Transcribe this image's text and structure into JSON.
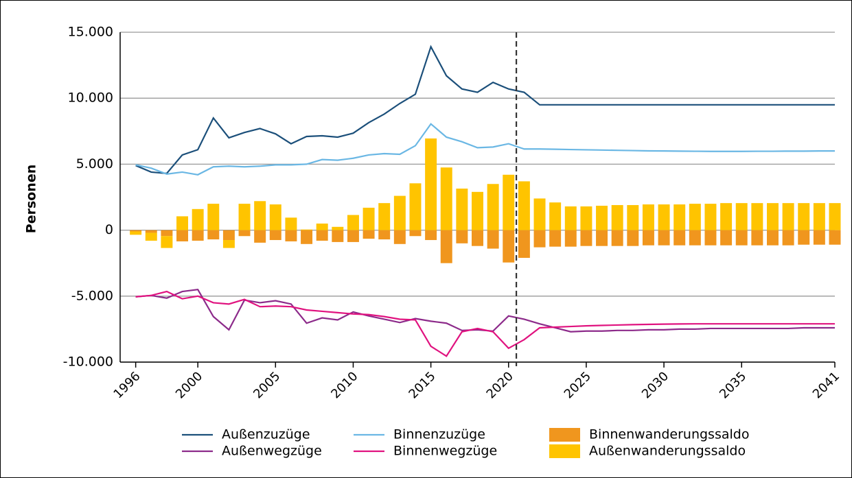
{
  "chart_data": {
    "type": "combo",
    "y_label": "Personen",
    "x": [
      1996,
      1997,
      1998,
      1999,
      2000,
      2001,
      2002,
      2003,
      2004,
      2005,
      2006,
      2007,
      2008,
      2009,
      2010,
      2011,
      2012,
      2013,
      2014,
      2015,
      2016,
      2017,
      2018,
      2019,
      2020,
      2021,
      2022,
      2023,
      2024,
      2025,
      2026,
      2027,
      2028,
      2029,
      2030,
      2031,
      2032,
      2033,
      2034,
      2035,
      2036,
      2037,
      2038,
      2039,
      2040,
      2041
    ],
    "xlim": [
      1995,
      2041
    ],
    "xticks": [
      1996,
      2000,
      2005,
      2010,
      2015,
      2020,
      2025,
      2030,
      2035,
      2041
    ],
    "ylim": [
      -10000,
      15000
    ],
    "yticks": [
      {
        "value": -10000,
        "label": "-10.000"
      },
      {
        "value": -5000,
        "label": "-5.000"
      },
      0,
      {
        "value": 5000,
        "label": "5.000"
      },
      {
        "value": 10000,
        "label": "10.000"
      },
      {
        "value": 15000,
        "label": "15.000"
      }
    ],
    "grid": true,
    "divider_x": 2020.5,
    "series": [
      {
        "name": "Außenzuzüge",
        "kind": "line",
        "color": "#1b4f7a",
        "values": [
          4900,
          4400,
          4300,
          5700,
          6100,
          8500,
          7000,
          7400,
          7700,
          7300,
          6550,
          7100,
          7150,
          7050,
          7350,
          8150,
          8800,
          9600,
          10300,
          13900,
          11700,
          10700,
          10450,
          11200,
          10700,
          10450,
          9500,
          9500,
          9500,
          9500,
          9500,
          9500,
          9500,
          9500,
          9500,
          9500,
          9500,
          9500,
          9500,
          9500,
          9500,
          9500,
          9500,
          9500,
          9500,
          9500
        ]
      },
      {
        "name": "Außenwegzüge",
        "kind": "line",
        "color": "#8c2a8a",
        "values": [
          -5050,
          -4950,
          -5150,
          -4650,
          -4500,
          -6550,
          -7550,
          -5300,
          -5500,
          -5350,
          -5600,
          -7050,
          -6650,
          -6800,
          -6200,
          -6500,
          -6750,
          -7000,
          -6700,
          -6900,
          -7050,
          -7600,
          -7550,
          -7650,
          -6500,
          -6750,
          -7100,
          -7400,
          -7700,
          -7650,
          -7650,
          -7600,
          -7600,
          -7550,
          -7550,
          -7500,
          -7500,
          -7450,
          -7450,
          -7450,
          -7450,
          -7450,
          -7450,
          -7400,
          -7400,
          -7400
        ]
      },
      {
        "name": "Binnenzuzüge",
        "kind": "line",
        "color": "#6ab7e4",
        "values": [
          4950,
          4700,
          4250,
          4400,
          4200,
          4800,
          4850,
          4800,
          4850,
          4950,
          4950,
          5000,
          5350,
          5300,
          5450,
          5700,
          5800,
          5750,
          6400,
          8050,
          7050,
          6700,
          6250,
          6300,
          6550,
          6150,
          6150,
          6130,
          6110,
          6090,
          6070,
          6050,
          6030,
          6010,
          6000,
          5990,
          5980,
          5970,
          5970,
          5970,
          5980,
          5980,
          5990,
          5990,
          6000,
          6000
        ]
      },
      {
        "name": "Binnenwegzüge",
        "kind": "line",
        "color": "#e0127f",
        "values": [
          -5050,
          -4950,
          -4650,
          -5200,
          -5000,
          -5500,
          -5600,
          -5250,
          -5800,
          -5750,
          -5800,
          -6050,
          -6150,
          -6250,
          -6350,
          -6400,
          -6550,
          -6750,
          -6800,
          -8800,
          -9550,
          -7700,
          -7450,
          -7700,
          -8950,
          -8300,
          -7400,
          -7350,
          -7300,
          -7250,
          -7220,
          -7190,
          -7160,
          -7140,
          -7120,
          -7110,
          -7100,
          -7100,
          -7100,
          -7100,
          -7100,
          -7100,
          -7100,
          -7100,
          -7100,
          -7100
        ]
      },
      {
        "name": "Binnenwanderungssaldo",
        "kind": "bar",
        "color": "#f0961e",
        "values": [
          -100,
          -200,
          -450,
          -850,
          -800,
          -700,
          -750,
          -450,
          -950,
          -750,
          -850,
          -1050,
          -800,
          -900,
          -900,
          -650,
          -700,
          -1050,
          -450,
          -750,
          -2500,
          -1000,
          -1200,
          -1400,
          -2450,
          -2100,
          -1300,
          -1250,
          -1250,
          -1200,
          -1200,
          -1200,
          -1200,
          -1150,
          -1150,
          -1150,
          -1150,
          -1150,
          -1150,
          -1150,
          -1150,
          -1150,
          -1150,
          -1100,
          -1100,
          -1100
        ]
      },
      {
        "name": "Außenwanderungssaldo",
        "kind": "bar",
        "color": "#ffc400",
        "values": [
          -250,
          -600,
          -900,
          1050,
          1600,
          2000,
          -600,
          2000,
          2200,
          1950,
          950,
          50,
          500,
          250,
          1150,
          1700,
          2050,
          2600,
          3550,
          6950,
          4750,
          3150,
          2900,
          3500,
          4200,
          3700,
          2400,
          2100,
          1800,
          1800,
          1850,
          1900,
          1900,
          1950,
          1950,
          1950,
          2000,
          2000,
          2050,
          2050,
          2050,
          2050,
          2050,
          2050,
          2050,
          2050
        ]
      }
    ]
  }
}
